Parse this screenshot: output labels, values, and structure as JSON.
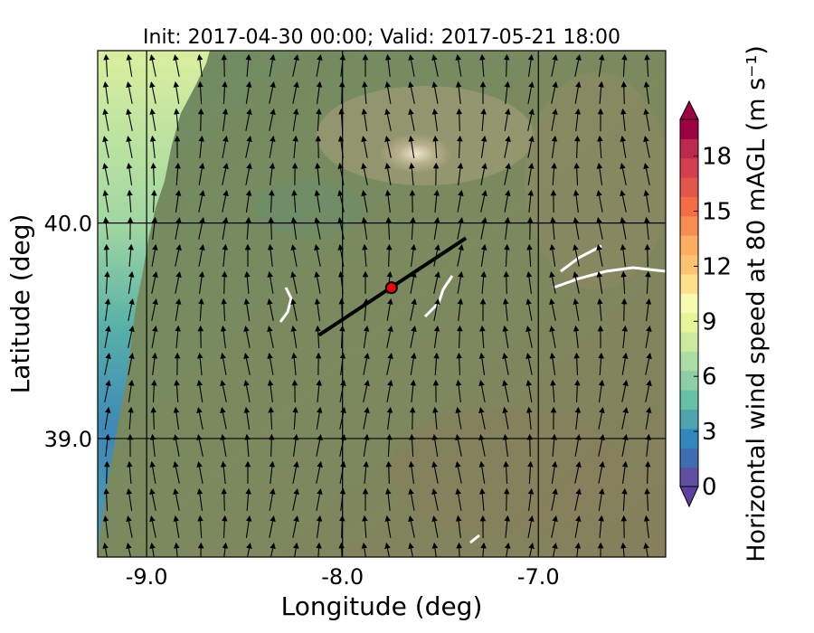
{
  "chart_data": {
    "type": "heatmap",
    "title": "Init: 2017-04-30 00:00; Valid: 2017-05-21 18:00",
    "xlabel": "Longitude (deg)",
    "ylabel": "Latitude (deg)",
    "xlim": [
      -9.25,
      -6.35
    ],
    "ylim": [
      38.45,
      40.8
    ],
    "x_ticks": [
      {
        "value": -9.0,
        "label": "-9.0"
      },
      {
        "value": -8.0,
        "label": "-8.0"
      },
      {
        "value": -7.0,
        "label": "-7.0"
      }
    ],
    "y_ticks": [
      {
        "value": 40.0,
        "label": "40.0"
      },
      {
        "value": 39.0,
        "label": "39.0"
      }
    ],
    "grid": true,
    "colorbar": {
      "label": "Horizontal wind speed at 80 mAGL (m s⁻¹)",
      "range": [
        0,
        20
      ],
      "extend": "both",
      "ticks": [
        {
          "value": 0,
          "label": "0"
        },
        {
          "value": 3,
          "label": "3"
        },
        {
          "value": 6,
          "label": "6"
        },
        {
          "value": 9,
          "label": "9"
        },
        {
          "value": 12,
          "label": "12"
        },
        {
          "value": 15,
          "label": "15"
        },
        {
          "value": 18,
          "label": "18"
        }
      ],
      "colors": [
        "#5e4fa2",
        "#3f6db1",
        "#3288bd",
        "#4ea5b0",
        "#66c2a5",
        "#8ccfa4",
        "#abdda4",
        "#cbe99f",
        "#e6f598",
        "#f7fbb0",
        "#fee08b",
        "#fdc371",
        "#fdae61",
        "#f88d52",
        "#f46d43",
        "#e45649",
        "#d53e4f",
        "#bb2a4e",
        "#9e0142"
      ]
    },
    "site": {
      "lon": -7.75,
      "lat": 39.7,
      "color": "#ff0000"
    },
    "transect": {
      "start": {
        "lon": -8.12,
        "lat": 39.48
      },
      "end": {
        "lon": -7.37,
        "lat": 39.93
      }
    },
    "wind_field": "arrows mostly pointing north / north-northeast across domain",
    "coastline_lon_at_top": -8.8
  }
}
